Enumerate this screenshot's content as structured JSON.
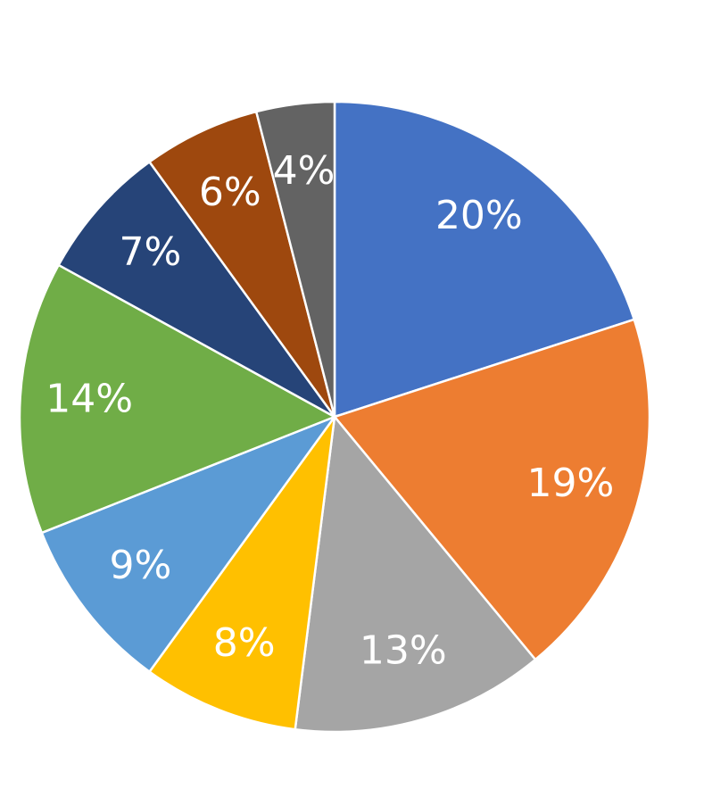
{
  "chart_data": {
    "type": "pie",
    "values": [
      20,
      19,
      13,
      8,
      9,
      14,
      7,
      6,
      4
    ],
    "value_labels": [
      "20%",
      "19%",
      "13%",
      "8%",
      "9%",
      "14%",
      "7%",
      "6%",
      "4%"
    ],
    "colors": [
      "#4472c4",
      "#ed7d31",
      "#a5a5a5",
      "#ffc000",
      "#5b9bd5",
      "#70ad47",
      "#264478",
      "#9e480e",
      "#636363"
    ]
  }
}
